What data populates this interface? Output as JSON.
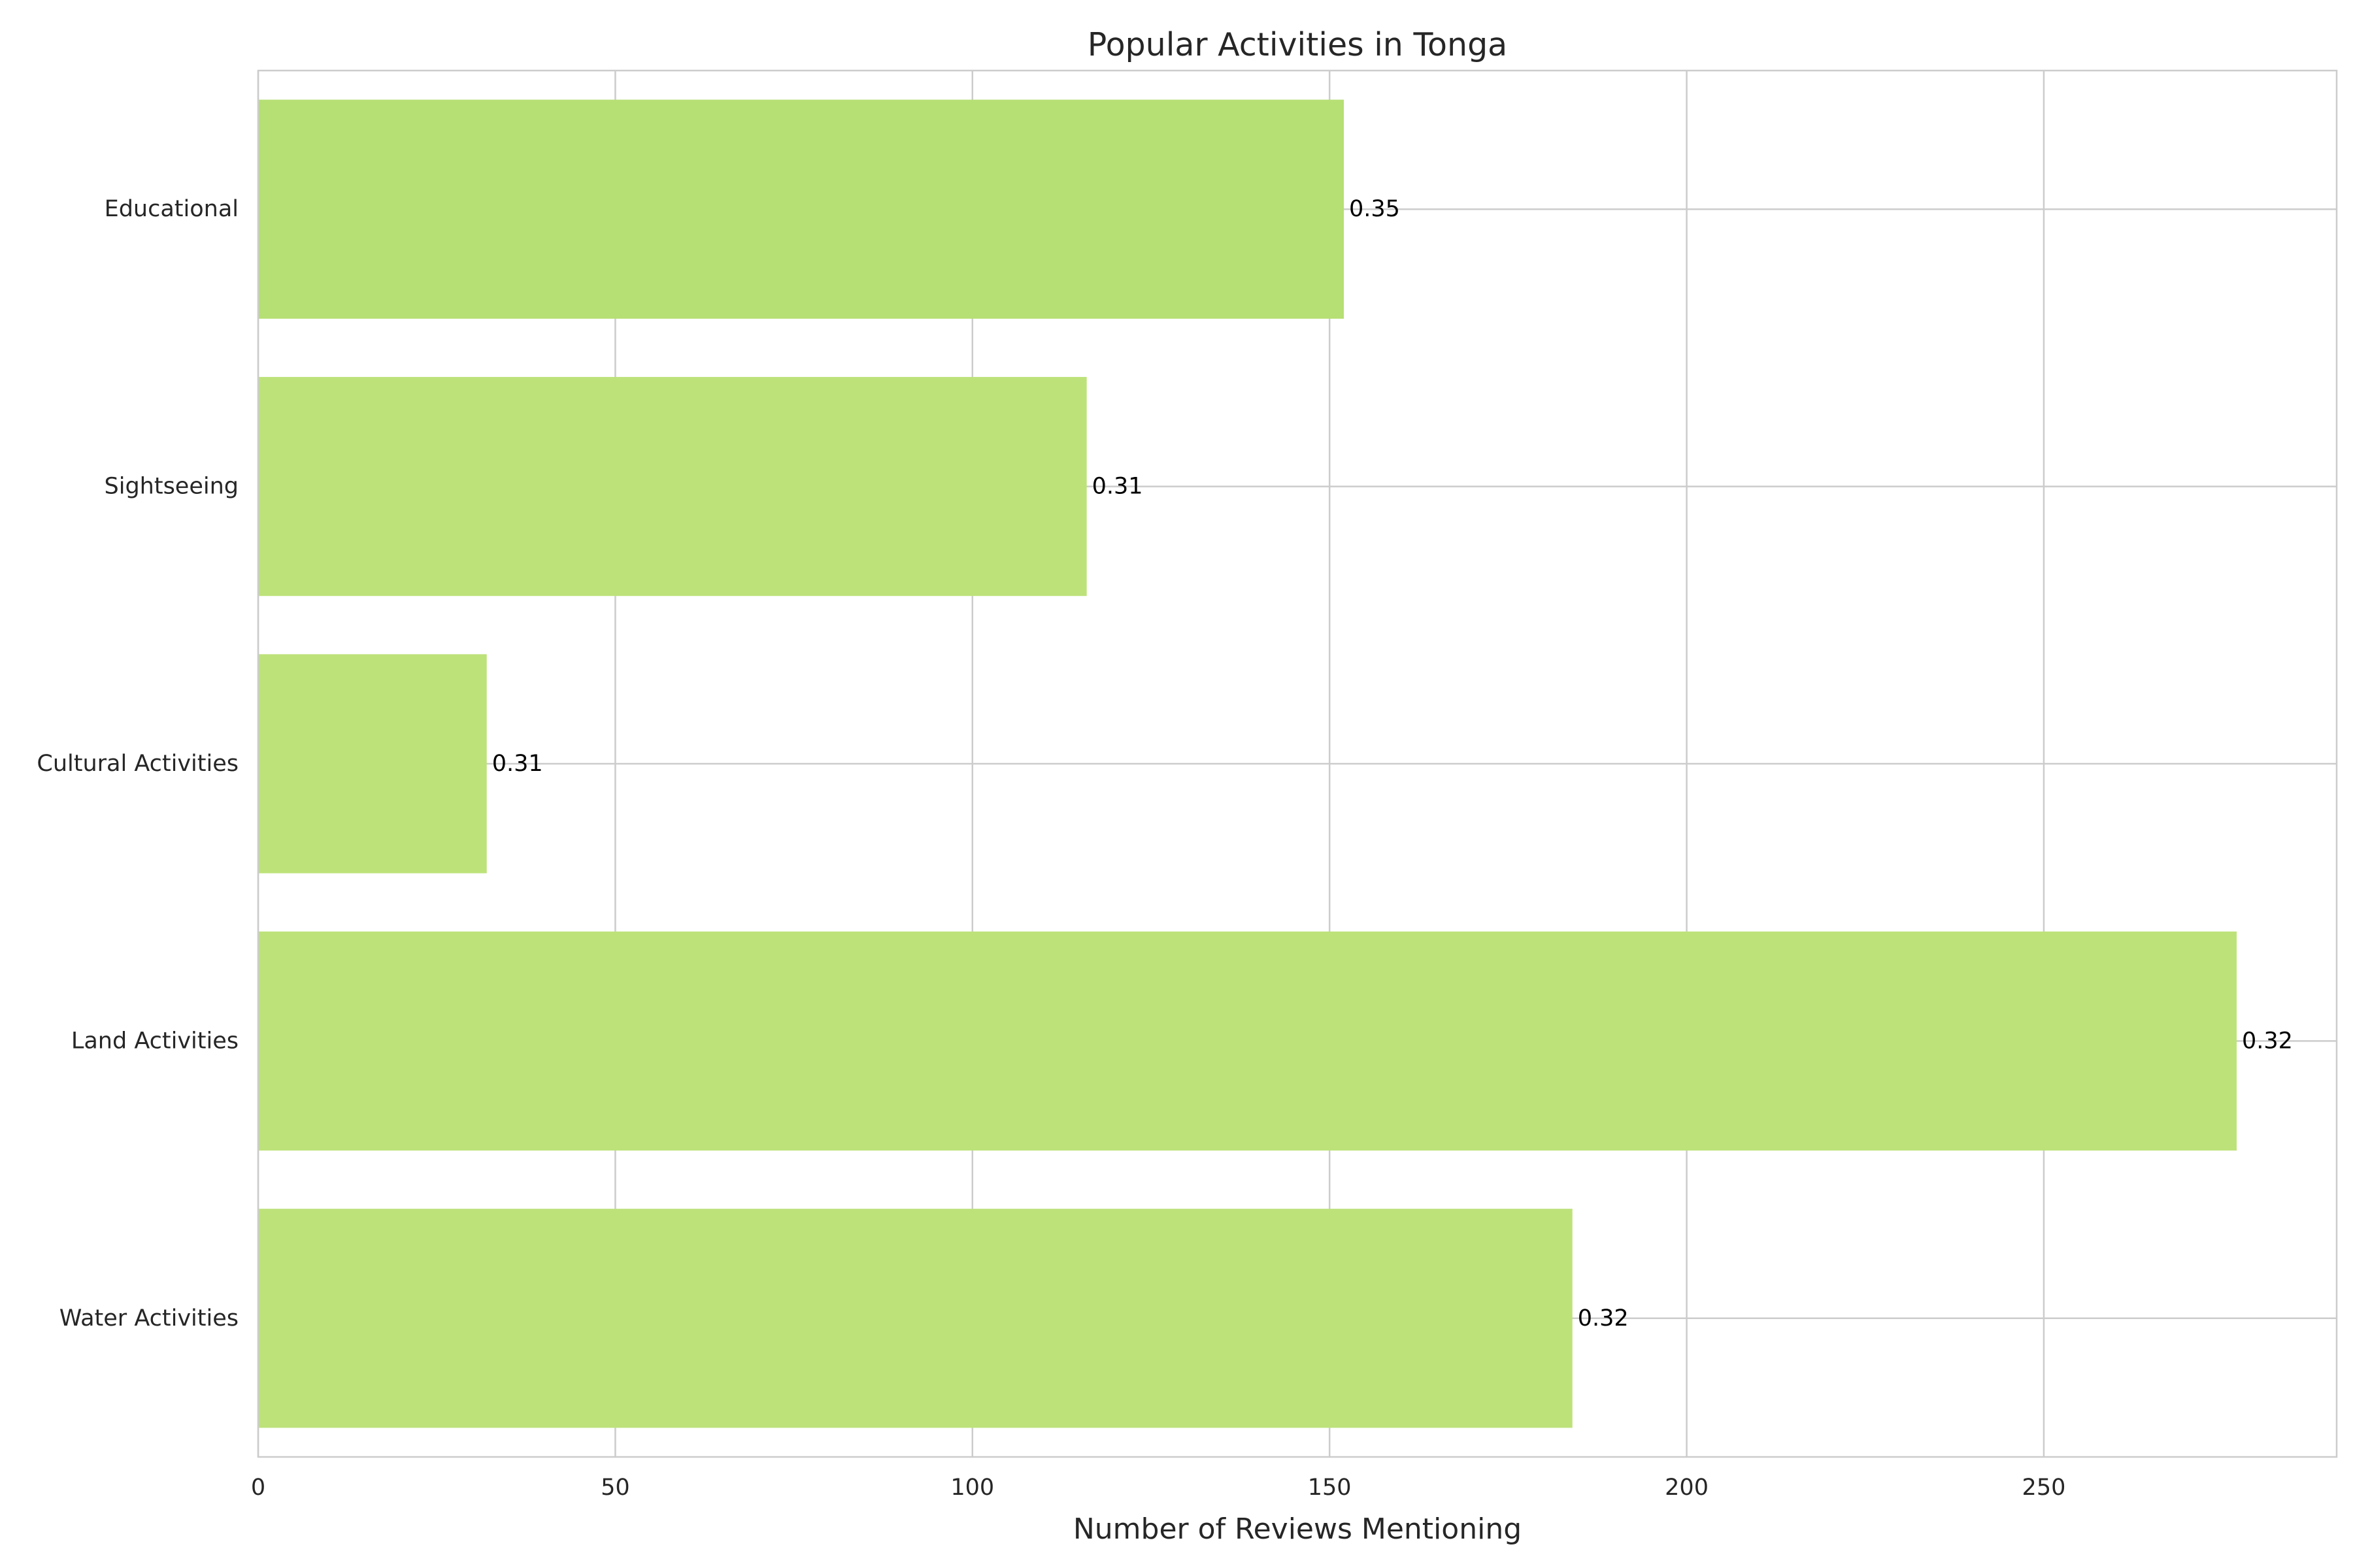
{
  "chart_data": {
    "type": "bar",
    "orientation": "horizontal",
    "title": "Popular Activities in Tonga",
    "xlabel": "Number of Reviews Mentioning",
    "ylabel": "",
    "categories": [
      "Water Activities",
      "Land Activities",
      "Cultural Activities",
      "Sightseeing",
      "Educational"
    ],
    "values": [
      184,
      277,
      32,
      116,
      152
    ],
    "data_labels": [
      "0.32",
      "0.32",
      "0.31",
      "0.31",
      "0.35"
    ],
    "xlim": [
      0,
      291
    ],
    "xticks": [
      0,
      50,
      100,
      150,
      200,
      250
    ],
    "grid": true,
    "colors": {
      "bars": [
        "#bde27a",
        "#bde27a",
        "#bde27a",
        "#bde27a",
        "#b6df74"
      ],
      "grid": "#cccccc",
      "spine": "#cccccc"
    }
  }
}
